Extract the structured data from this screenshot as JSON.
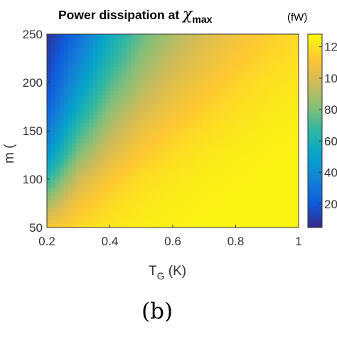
{
  "chart_data": {
    "type": "heatmap",
    "title": "Power dissipation at ",
    "title_symbol": "χ",
    "title_symbol_subscript": "max",
    "colorbar_unit": "(fW)",
    "xlabel": "T",
    "xlabel_subscript": "G",
    "xlabel_unit": " (K)",
    "ylabel": "m (",
    "xlim": [
      0.2,
      1
    ],
    "ylim": [
      50,
      250
    ],
    "x_ticks": [
      "0.2",
      "0.4",
      "0.6",
      "0.8",
      "1"
    ],
    "x_tick_values": [
      0.2,
      0.4,
      0.6,
      0.8,
      1.0
    ],
    "y_ticks": [
      "50",
      "100",
      "150",
      "200",
      "250"
    ],
    "y_tick_values": [
      50,
      100,
      150,
      200,
      250
    ],
    "colorbar_ticks": [
      "20",
      "40",
      "60",
      "80",
      "100",
      "120"
    ],
    "colorbar_tick_values": [
      20,
      40,
      60,
      80,
      100,
      120
    ],
    "colorbar_range": [
      5,
      128
    ],
    "colormap": "parula",
    "grid": false,
    "panel_label": "(b)",
    "grid_x": [
      0.2,
      0.3,
      0.4,
      0.5,
      0.6,
      0.7,
      0.8,
      0.9,
      1.0
    ],
    "grid_y": [
      50,
      75,
      100,
      125,
      150,
      175,
      200,
      225,
      250
    ],
    "z": [
      [
        110,
        118,
        122,
        124,
        125,
        126,
        126,
        126,
        126
      ],
      [
        88,
        110,
        118,
        122,
        124,
        125,
        126,
        126,
        126
      ],
      [
        65,
        98,
        112,
        119,
        122,
        124,
        125,
        126,
        126
      ],
      [
        45,
        82,
        102,
        113,
        119,
        122,
        124,
        125,
        126
      ],
      [
        32,
        68,
        92,
        106,
        114,
        119,
        122,
        124,
        125
      ],
      [
        22,
        55,
        82,
        98,
        108,
        115,
        119,
        122,
        124
      ],
      [
        15,
        45,
        72,
        90,
        102,
        110,
        116,
        120,
        122
      ],
      [
        11,
        36,
        63,
        83,
        96,
        105,
        112,
        117,
        120
      ],
      [
        8,
        28,
        55,
        76,
        90,
        100,
        108,
        114,
        118
      ]
    ]
  }
}
